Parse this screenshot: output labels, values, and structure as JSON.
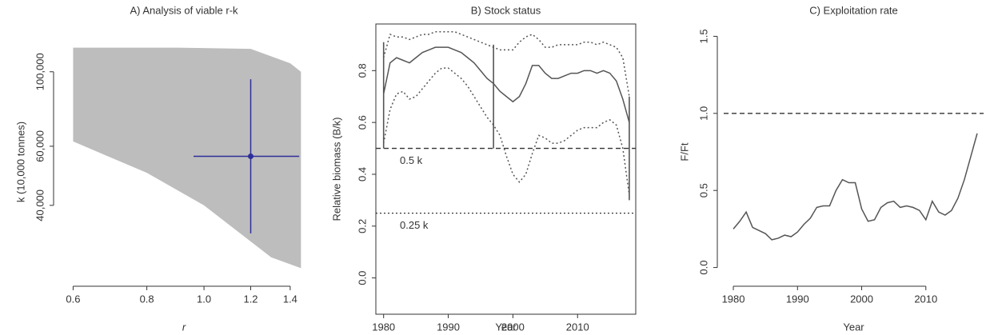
{
  "chart_data": [
    {
      "type": "scatter",
      "title": "A) Analysis of viable r-k",
      "x_label": "r",
      "y_label": "k (10,000 tonnes)",
      "log_x": true,
      "log_y": true,
      "box": false,
      "xlim": [
        0.57,
        1.5
      ],
      "ylim": [
        24000,
        121000
      ],
      "xticks": [
        0.6,
        0.8,
        {
          "value": 1,
          "label": "1.0"
        },
        1.2,
        1.4
      ],
      "yticks": [
        {
          "value": 40000,
          "label": "40,000"
        },
        {
          "value": 60000,
          "label": "60,000"
        },
        {
          "value": 100000,
          "label": "100,000"
        }
      ],
      "region": {
        "color": "#bdbdbd",
        "x": [
          0.6,
          0.9,
          1.2,
          1.4,
          1.46,
          1.46,
          1.3,
          1.0,
          0.8,
          0.6
        ],
        "y": [
          118000,
          118000,
          117000,
          106000,
          100000,
          26000,
          28000,
          40000,
          50000,
          62000
        ]
      },
      "estimate": {
        "color": "#2e2e9a",
        "x": 1.2,
        "y": 56000,
        "x_ci": [
          0.96,
          1.45
        ],
        "y_ci": [
          33000,
          95000
        ]
      }
    },
    {
      "type": "line",
      "title": "B) Stock status",
      "x_label": "Year",
      "y_label": "Relative biomass (B/k)",
      "box": true,
      "xlim": [
        1978.8,
        2019
      ],
      "ylim": [
        -0.14,
        0.98
      ],
      "xticks": [
        1980,
        1990,
        2000,
        2010
      ],
      "yticks": [
        {
          "value": 0,
          "label": "0.0"
        },
        0.2,
        0.4,
        0.6,
        0.8
      ],
      "x": [
        1980,
        1981,
        1982,
        1983,
        1984,
        1985,
        1986,
        1987,
        1988,
        1989,
        1990,
        1991,
        1992,
        1993,
        1994,
        1995,
        1996,
        1997,
        1998,
        1999,
        2000,
        2001,
        2002,
        2003,
        2004,
        2005,
        2006,
        2007,
        2008,
        2009,
        2010,
        2011,
        2012,
        2013,
        2014,
        2015,
        2016,
        2017,
        2018
      ],
      "series": [
        {
          "color": "#555555",
          "style": "solid",
          "values": [
            0.71,
            0.83,
            0.85,
            0.84,
            0.83,
            0.85,
            0.87,
            0.88,
            0.89,
            0.89,
            0.89,
            0.88,
            0.87,
            0.85,
            0.83,
            0.8,
            0.77,
            0.75,
            0.72,
            0.7,
            0.68,
            0.7,
            0.75,
            0.82,
            0.82,
            0.79,
            0.77,
            0.77,
            0.78,
            0.79,
            0.79,
            0.8,
            0.8,
            0.79,
            0.8,
            0.79,
            0.76,
            0.69,
            0.6
          ]
        },
        {
          "color": "#555555",
          "style": "dotted",
          "values": [
            0.85,
            0.94,
            0.93,
            0.93,
            0.92,
            0.93,
            0.94,
            0.94,
            0.95,
            0.95,
            0.95,
            0.95,
            0.94,
            0.93,
            0.92,
            0.91,
            0.9,
            0.89,
            0.88,
            0.88,
            0.88,
            0.91,
            0.93,
            0.94,
            0.92,
            0.89,
            0.89,
            0.9,
            0.9,
            0.9,
            0.9,
            0.91,
            0.91,
            0.9,
            0.91,
            0.9,
            0.89,
            0.85,
            0.7
          ]
        },
        {
          "color": "#555555",
          "style": "dotted",
          "values": [
            0.52,
            0.65,
            0.71,
            0.72,
            0.69,
            0.7,
            0.73,
            0.76,
            0.79,
            0.81,
            0.81,
            0.79,
            0.77,
            0.74,
            0.7,
            0.66,
            0.62,
            0.59,
            0.55,
            0.47,
            0.4,
            0.37,
            0.4,
            0.48,
            0.55,
            0.54,
            0.52,
            0.52,
            0.53,
            0.55,
            0.57,
            0.58,
            0.58,
            0.58,
            0.6,
            0.61,
            0.59,
            0.5,
            0.32
          ]
        }
      ],
      "prior_ranges": [
        {
          "x": 1980,
          "low": 0.5,
          "high": 0.91
        },
        {
          "x": 1997,
          "low": 0.5,
          "high": 0.9
        },
        {
          "x": 2018,
          "low": 0.3,
          "high": 0.7
        }
      ],
      "reference_lines": [
        {
          "y": 0.5,
          "label": "0.5 k",
          "style": "dashed"
        },
        {
          "y": 0.25,
          "label": "0.25 k",
          "style": "dotted"
        }
      ]
    },
    {
      "type": "line",
      "title": "C) Exploitation rate",
      "x_label": "Year",
      "y_label": "F/Ft",
      "box": false,
      "xlim": [
        1978.5,
        2019
      ],
      "ylim": [
        -0.08,
        1.58
      ],
      "xticks": [
        1980,
        1990,
        2000,
        2010
      ],
      "yticks": [
        {
          "value": 0,
          "label": "0.0"
        },
        0.5,
        {
          "value": 1,
          "label": "1.0"
        },
        1.5
      ],
      "x": [
        1980,
        1981,
        1982,
        1983,
        1984,
        1985,
        1986,
        1987,
        1988,
        1989,
        1990,
        1991,
        1992,
        1993,
        1994,
        1995,
        1996,
        1997,
        1998,
        1999,
        2000,
        2001,
        2002,
        2003,
        2004,
        2005,
        2006,
        2007,
        2008,
        2009,
        2010,
        2011,
        2012,
        2013,
        2014,
        2015,
        2016,
        2017,
        2018
      ],
      "series": [
        {
          "color": "#555555",
          "style": "solid",
          "values": [
            0.25,
            0.3,
            0.36,
            0.26,
            0.24,
            0.22,
            0.18,
            0.19,
            0.21,
            0.2,
            0.23,
            0.28,
            0.32,
            0.39,
            0.4,
            0.4,
            0.5,
            0.57,
            0.55,
            0.55,
            0.38,
            0.3,
            0.31,
            0.39,
            0.42,
            0.43,
            0.39,
            0.4,
            0.39,
            0.37,
            0.31,
            0.43,
            0.36,
            0.34,
            0.37,
            0.45,
            0.57,
            0.72,
            0.87
          ]
        }
      ],
      "reference_lines": [
        {
          "y": 1,
          "style": "dashed"
        }
      ]
    }
  ]
}
